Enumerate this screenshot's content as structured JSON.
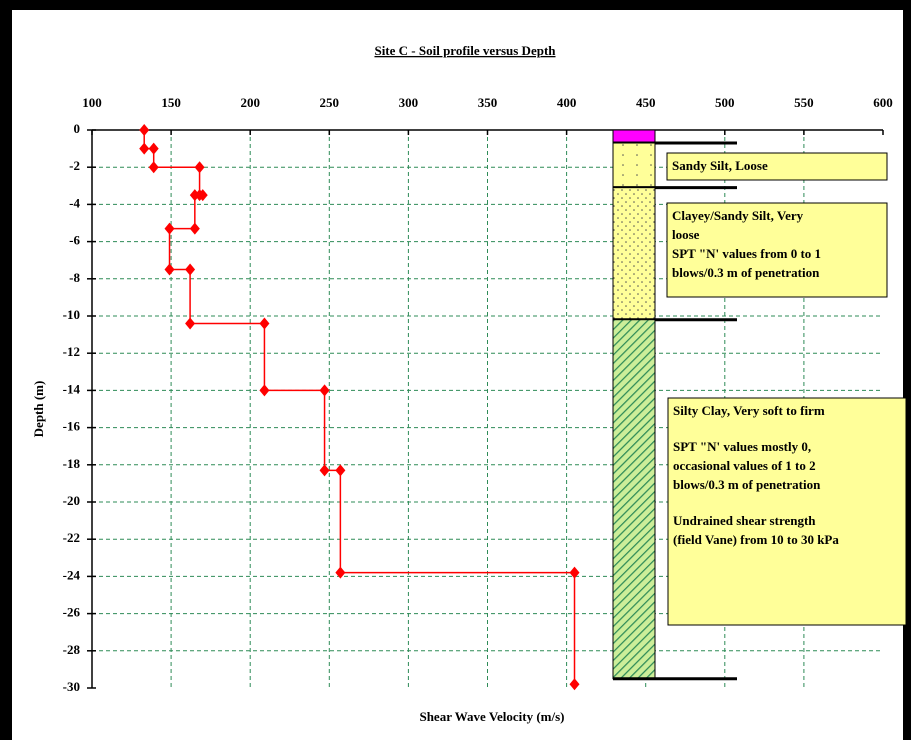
{
  "chart_data": {
    "type": "scatter",
    "title": "Site C - Soil profile versus Depth",
    "x_label": "Shear Wave Velocity (m/s)",
    "y_label": "Depth (m)",
    "xlim": [
      100,
      600
    ],
    "xticks": [
      100,
      150,
      200,
      250,
      300,
      350,
      400,
      450,
      500,
      550,
      600
    ],
    "ylim": [
      -30,
      0
    ],
    "yticks": [
      0,
      -2,
      -4,
      -6,
      -8,
      -10,
      -12,
      -14,
      -16,
      -18,
      -20,
      -22,
      -24,
      -26,
      -28,
      -30
    ],
    "grid": true,
    "series": [
      {
        "color": "#ff0000",
        "x": [
          133,
          133,
          139,
          139,
          168,
          168,
          170,
          165,
          165,
          149,
          149,
          162,
          162,
          209,
          209,
          247,
          247,
          257,
          257,
          405,
          405
        ],
        "values": [
          0,
          -1,
          -1,
          -2,
          -2,
          -3.5,
          -3.5,
          -3.5,
          -5.3,
          -5.3,
          -7.5,
          -7.5,
          -10.4,
          -10.4,
          -14,
          -14,
          -18.3,
          -18.3,
          -23.8,
          -23.8,
          -29.8
        ]
      }
    ],
    "layers": [
      {
        "top": 0,
        "bottom": -0.7,
        "color": "#ff00ff"
      },
      {
        "top": -0.7,
        "bottom": -3.1,
        "color": "#ffff99",
        "label_color": "#000000",
        "paragraphs": [
          [
            "Sandy Silt, Loose"
          ]
        ]
      },
      {
        "top": -3.1,
        "bottom": -10.2,
        "color": "#ffff99",
        "label_color": "#000000",
        "paragraphs": [
          [
            "Clayey/Sandy Silt, Very",
            "loose",
            "SPT \"N' values from 0 to 1",
            "blows/0.3 m of penetration"
          ]
        ]
      },
      {
        "top": -10.2,
        "bottom": -29.5,
        "color": "#66bb66",
        "label_color": "#2e8b57",
        "paragraphs": [
          [
            "Silty Clay, Very soft to firm"
          ],
          [
            "SPT \"N' values mostly 0,",
            "occasional values of 1 to 2",
            "blows/0.3 m of penetration"
          ],
          [
            "Undrained shear strength",
            "(field Vane) from 10 to 30 kPa"
          ]
        ]
      }
    ]
  }
}
